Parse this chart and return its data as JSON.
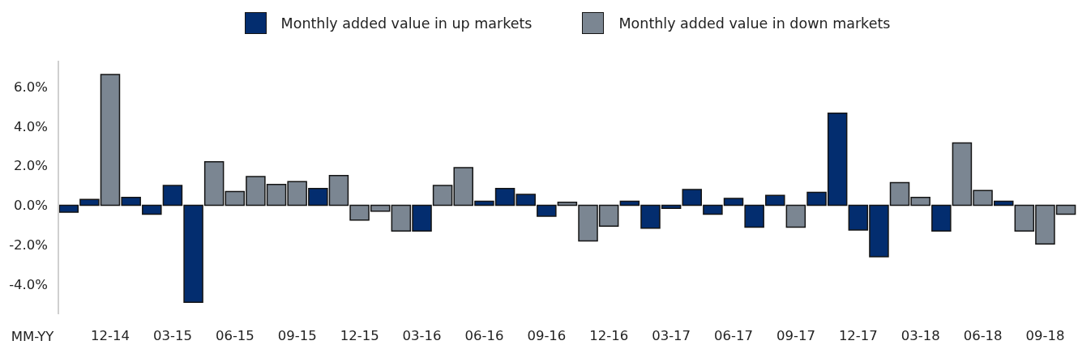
{
  "chart_data": {
    "type": "bar",
    "categories": [
      null,
      null,
      "12-14",
      null,
      null,
      "03-15",
      null,
      null,
      "06-15",
      null,
      null,
      "09-15",
      null,
      null,
      "12-15",
      null,
      null,
      "03-16",
      null,
      null,
      "06-16",
      null,
      null,
      "09-16",
      null,
      null,
      "12-16",
      null,
      null,
      "03-17",
      null,
      null,
      "06-17",
      null,
      null,
      "09-17",
      null,
      null,
      "12-17",
      null,
      null,
      "03-18",
      null,
      null,
      "06-18",
      null,
      null,
      "09-18",
      null
    ],
    "xlabel": "MM-YY",
    "series": [
      {
        "name": "Monthly added value in up markets",
        "color": "#032d6f",
        "values": [
          -0.35,
          0.3,
          null,
          0.4,
          -0.45,
          1.0,
          -4.9,
          null,
          null,
          null,
          null,
          null,
          0.85,
          null,
          null,
          null,
          null,
          -1.3,
          null,
          null,
          0.2,
          0.85,
          0.55,
          -0.55,
          null,
          null,
          null,
          0.2,
          -1.15,
          -0.15,
          0.8,
          -0.45,
          0.35,
          -1.1,
          0.5,
          null,
          0.65,
          4.65,
          -1.25,
          -2.6,
          null,
          null,
          -1.3,
          null,
          null,
          0.2,
          null,
          null,
          null
        ]
      },
      {
        "name": "Monthly added value in down markets",
        "color": "#7b8692",
        "values": [
          null,
          null,
          6.6,
          null,
          null,
          null,
          null,
          2.2,
          0.7,
          1.45,
          1.05,
          1.2,
          null,
          1.5,
          -0.75,
          -0.3,
          -1.3,
          null,
          1.0,
          1.9,
          null,
          null,
          null,
          null,
          0.15,
          -1.8,
          -1.05,
          null,
          null,
          null,
          null,
          null,
          null,
          null,
          null,
          -1.1,
          null,
          null,
          null,
          null,
          1.15,
          0.4,
          null,
          3.15,
          0.75,
          null,
          -1.3,
          -1.95,
          -0.45
        ]
      }
    ],
    "ylim": [
      -5.5,
      7.3
    ],
    "yticks": [
      {
        "value": -4,
        "label": "-4.0%"
      },
      {
        "value": -2,
        "label": "-2.0%"
      },
      {
        "value": 0,
        "label": "0.0%"
      },
      {
        "value": 2,
        "label": "2.0%"
      },
      {
        "value": 4,
        "label": "4.0%"
      },
      {
        "value": 6,
        "label": "6.0%"
      }
    ],
    "legend": "top"
  }
}
